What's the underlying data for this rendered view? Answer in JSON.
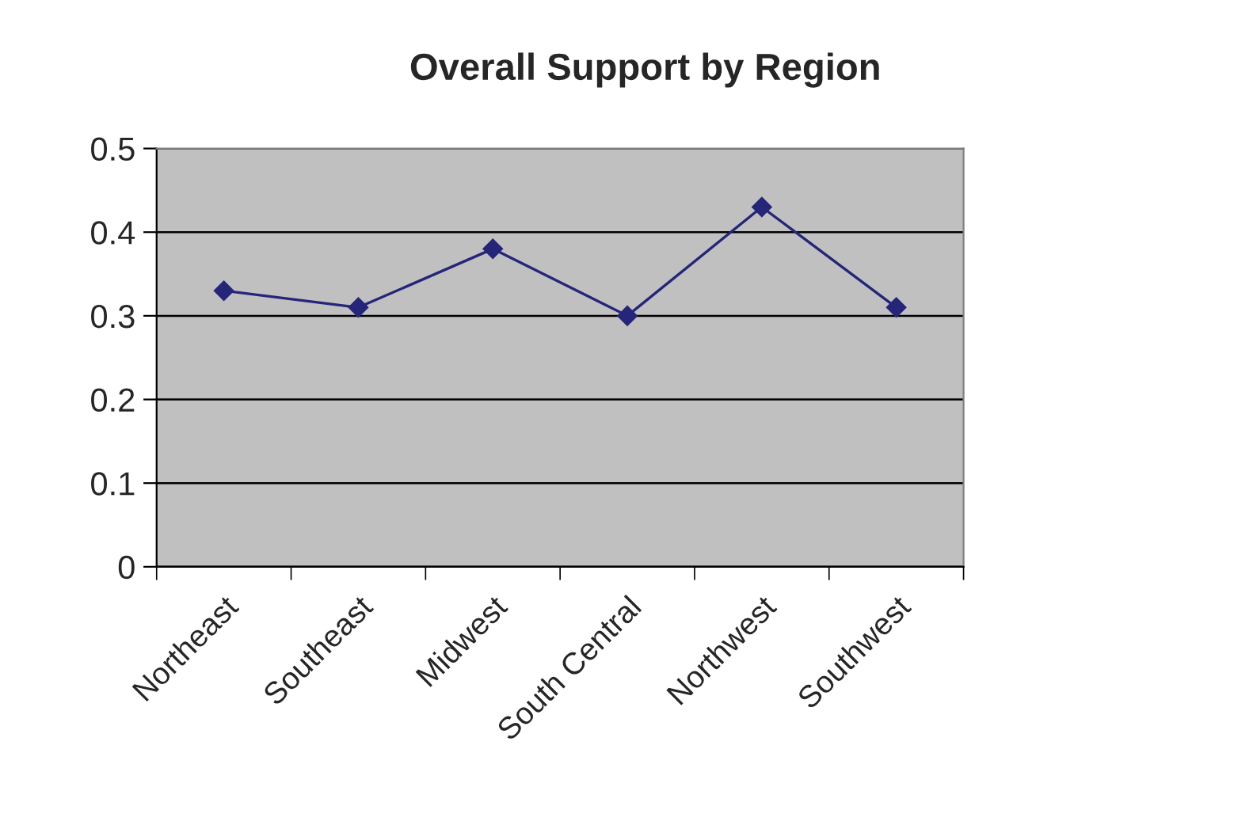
{
  "chart_data": {
    "type": "line",
    "title": "Overall Support by Region",
    "categories": [
      "Northeast",
      "Southeast",
      "Midwest",
      "South Central",
      "Northwest",
      "Southwest"
    ],
    "series": [
      {
        "color": "#25257a",
        "values": [
          0.33,
          0.31,
          0.38,
          0.3,
          0.43,
          0.31
        ]
      }
    ],
    "ylim": [
      0,
      0.5
    ],
    "yticks": [
      0,
      0.1,
      0.2,
      0.3,
      0.4,
      0.5
    ],
    "grid": "y",
    "marker": "diamond",
    "line_style": "solid",
    "legend": false
  }
}
